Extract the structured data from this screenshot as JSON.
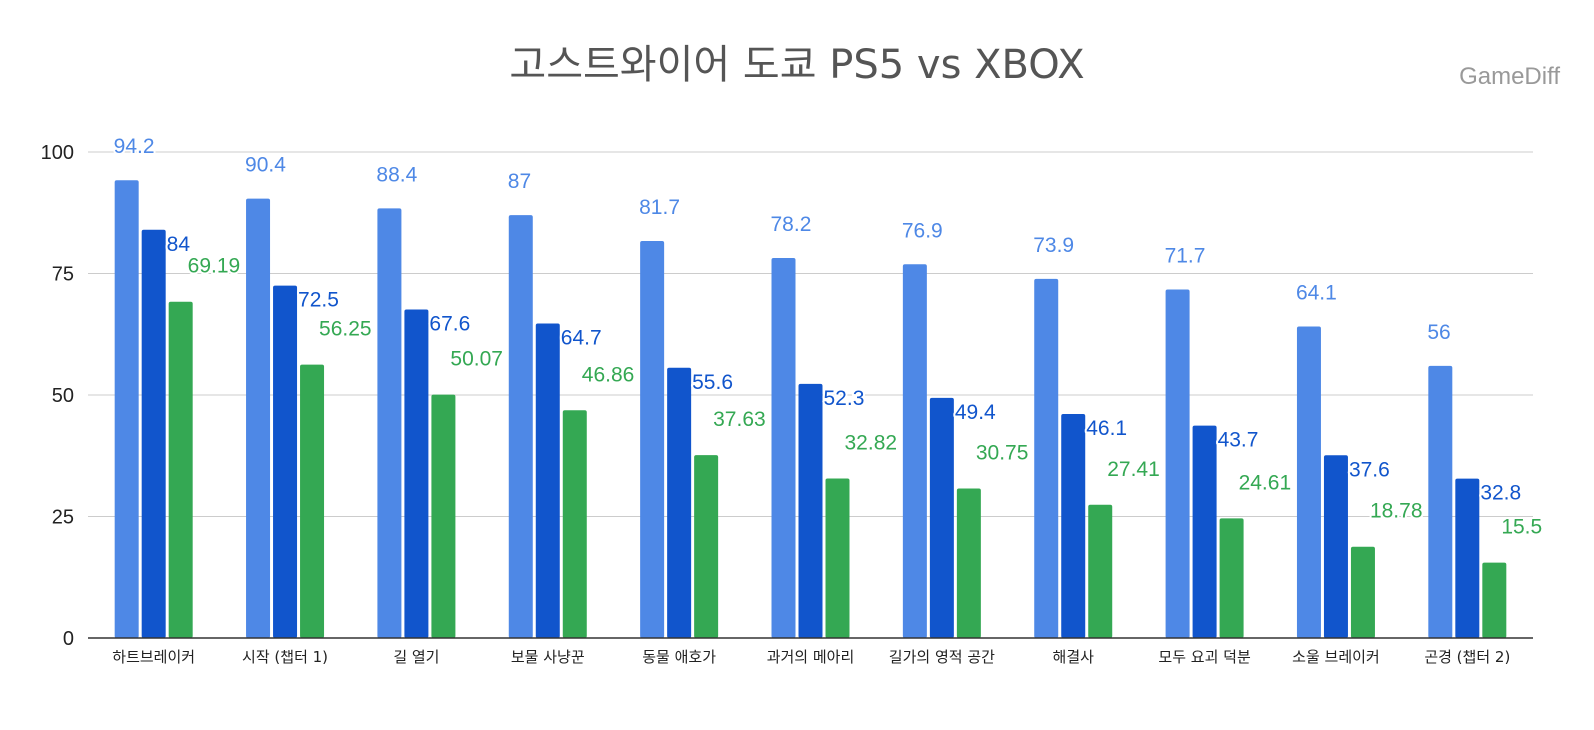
{
  "chart_data": {
    "type": "bar",
    "title": "고스트와이어 도쿄 PS5 vs XBOX",
    "watermark": "GameDiff",
    "xlabel": "",
    "ylabel": "",
    "ylim": [
      0,
      100
    ],
    "yticks": [
      "0",
      "25",
      "50",
      "75",
      "100"
    ],
    "grid": true,
    "categories": [
      "하트브레이커",
      "시작 (챕터 1)",
      "길 열기",
      "보물 사냥꾼",
      "동물 애호가",
      "과거의 메아리",
      "길가의 영적 공간",
      "해결사",
      "모두 요괴 덕분",
      "소울 브레이커",
      "곤경 (챕터 2)"
    ],
    "series": [
      {
        "name": "series-1",
        "color": "#4e88e6",
        "values": [
          94.2,
          90.4,
          88.4,
          87,
          81.7,
          78.2,
          76.9,
          73.9,
          71.7,
          64.1,
          56
        ],
        "labels": [
          "94.2",
          "90.4",
          "88.4",
          "87",
          "81.7",
          "78.2",
          "76.9",
          "73.9",
          "71.7",
          "64.1",
          "56"
        ]
      },
      {
        "name": "series-2",
        "color": "#1155cc",
        "values": [
          84,
          72.5,
          67.6,
          64.7,
          55.6,
          52.3,
          49.4,
          46.1,
          43.7,
          37.6,
          32.8
        ],
        "labels": [
          "84",
          "72.5",
          "67.6",
          "64.7",
          "55.6",
          "52.3",
          "49.4",
          "46.1",
          "43.7",
          "37.6",
          "32.8"
        ]
      },
      {
        "name": "series-3",
        "color": "#34a853",
        "values": [
          69.19,
          56.25,
          50.07,
          46.86,
          37.63,
          32.82,
          30.75,
          27.41,
          24.61,
          18.78,
          15.5
        ],
        "labels": [
          "69.19",
          "56.25",
          "50.07",
          "46.86",
          "37.63",
          "32.82",
          "30.75",
          "27.41",
          "24.61",
          "18.78",
          "15.5"
        ]
      }
    ]
  }
}
